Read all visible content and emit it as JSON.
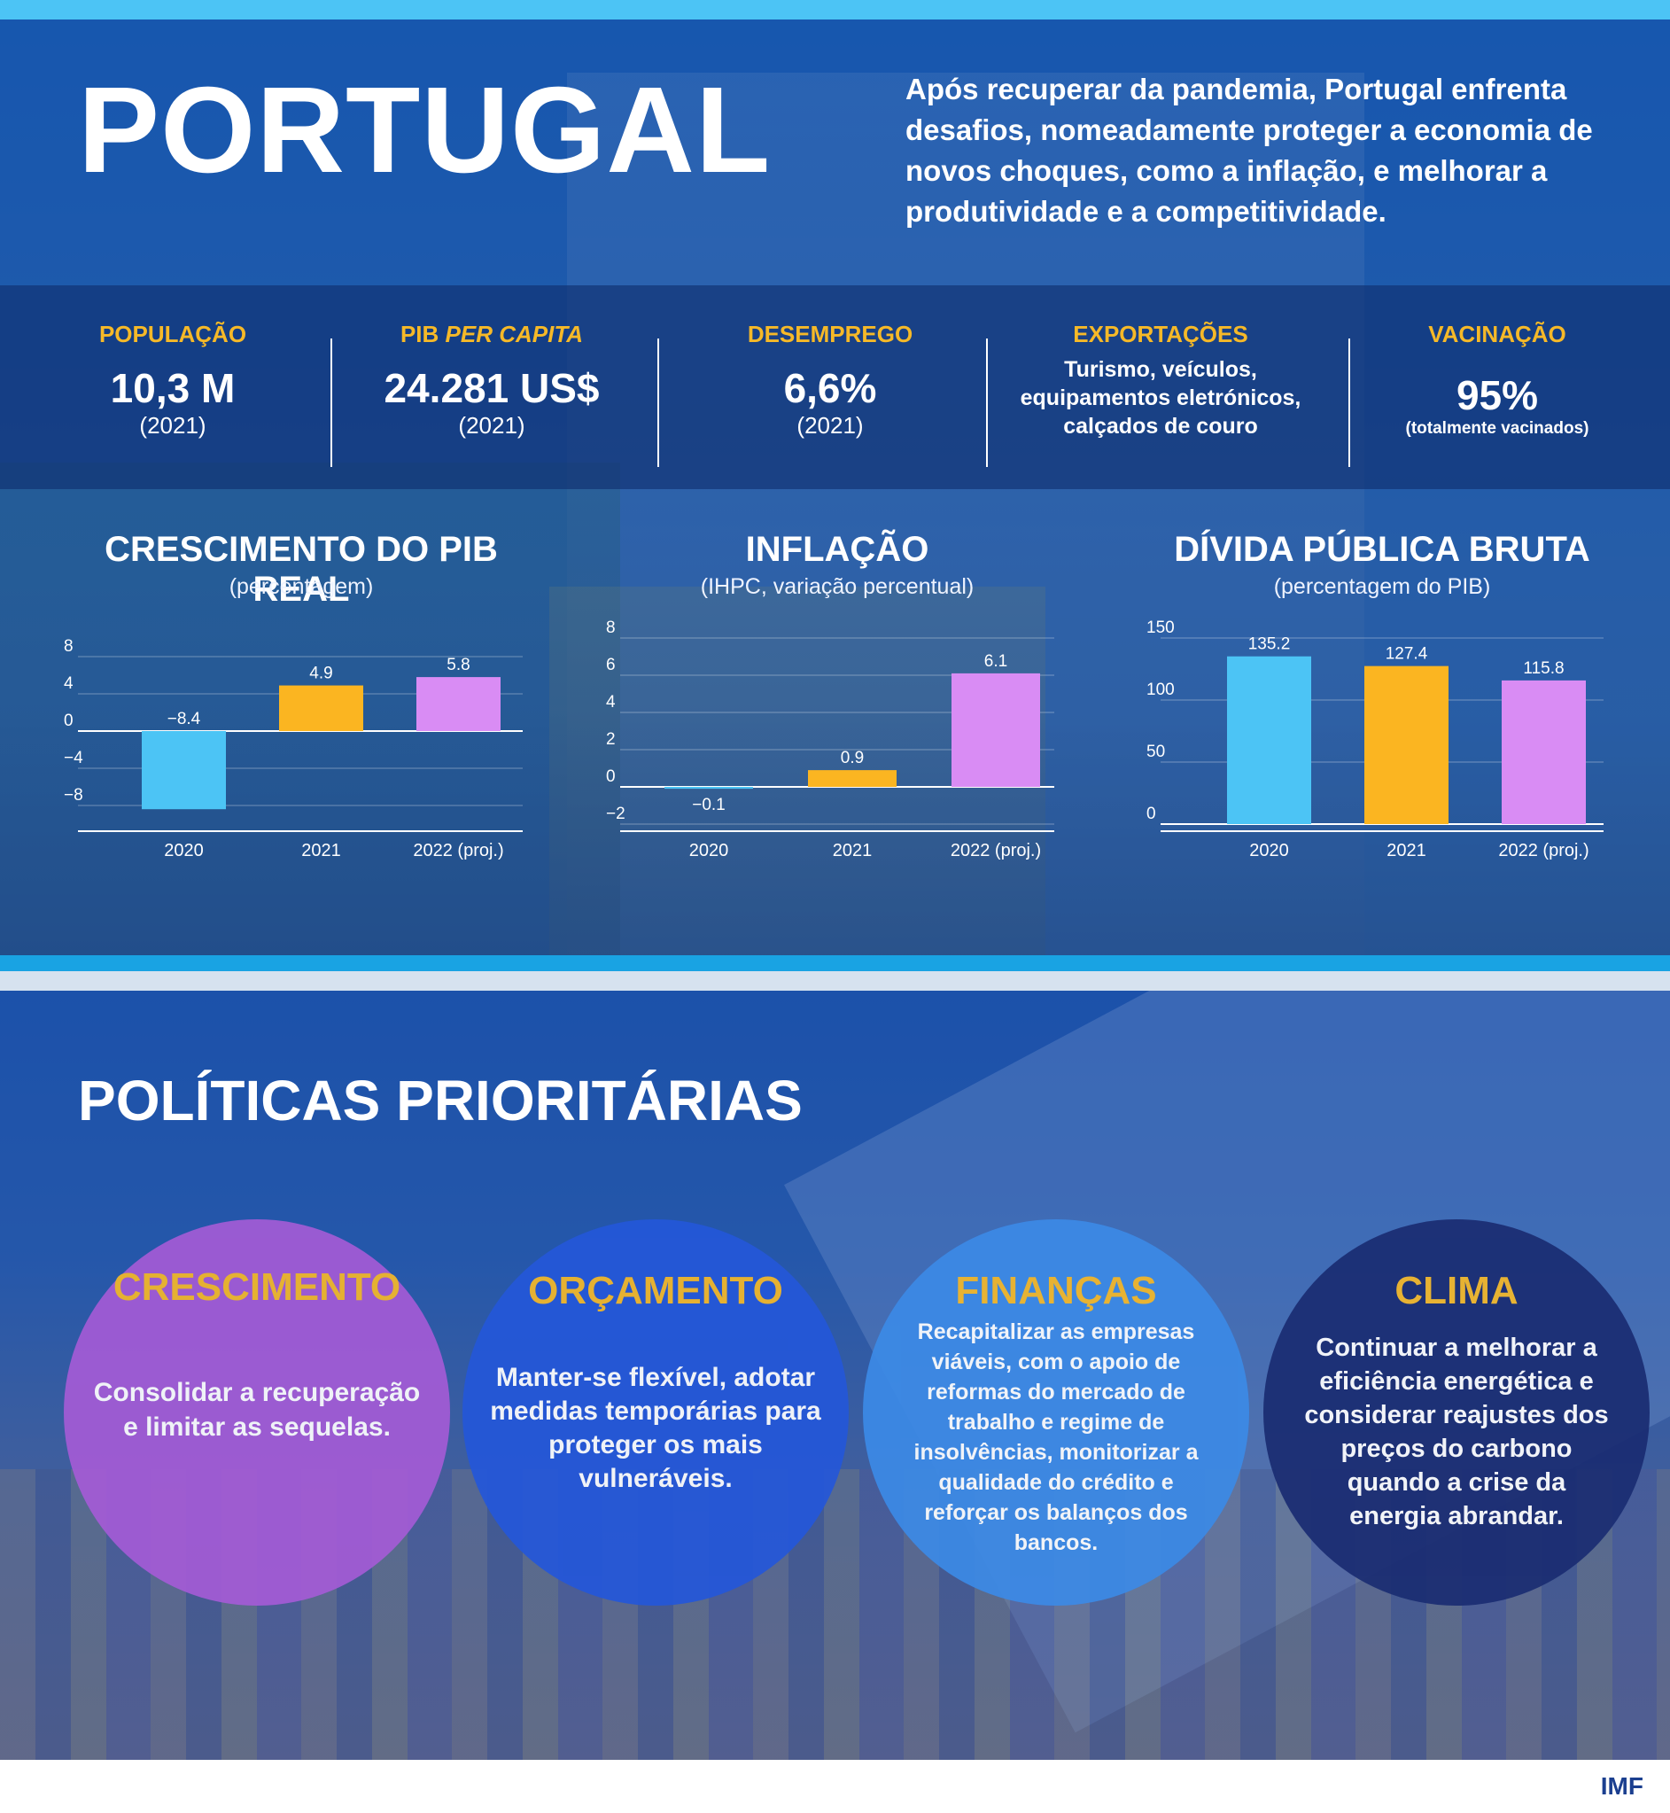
{
  "header": {
    "title": "PORTUGAL",
    "intro": "Após recuperar da pandemia, Portugal enfrenta desafios, nomeadamente proteger a economia de novos choques, como a inflação, e melhorar a produtividade e a competitividade."
  },
  "stats": {
    "population": {
      "label": "POPULAÇÃO",
      "value": "10,3 M",
      "sub": "(2021)"
    },
    "gdp_pc": {
      "label_main": "PIB ",
      "label_em": "PER CAPITA",
      "value": "24.281 US$",
      "sub": "(2021)"
    },
    "unemployment": {
      "label": "DESEMPREGO",
      "value": "6,6%",
      "sub": "(2021)"
    },
    "exports": {
      "label": "EXPORTAÇÕES",
      "text": "Turismo, veículos, equipamentos eletrónicos, calçados de couro"
    },
    "vaccination": {
      "label": "VACINAÇÃO",
      "value": "95%",
      "sub": "(totalmente vacinados)"
    }
  },
  "chart_data": [
    {
      "type": "bar",
      "title": "CRESCIMENTO DO PIB REAL",
      "subtitle": "(percentagem)",
      "categories": [
        "2020",
        "2021",
        "2022 (proj.)"
      ],
      "values": [
        -8.4,
        4.9,
        5.8
      ],
      "value_labels": [
        "−8.4",
        "4.9",
        "5.8"
      ],
      "colors": [
        "#4cc4f5",
        "#fbb521",
        "#d98cf4"
      ],
      "ylim": [
        -10,
        10
      ],
      "yticks": [
        8,
        4,
        0,
        -4,
        -8
      ],
      "ytick_labels": [
        "8",
        "4",
        "0",
        "−4",
        "−8"
      ],
      "grid": true
    },
    {
      "type": "bar",
      "title": "INFLAÇÃO",
      "subtitle": "(IHPC, variação percentual)",
      "categories": [
        "2020",
        "2021",
        "2022 (proj.)"
      ],
      "values": [
        -0.1,
        0.9,
        6.1
      ],
      "value_labels": [
        "−0.1",
        "0.9",
        "6.1"
      ],
      "colors": [
        "#4cc4f5",
        "#fbb521",
        "#d98cf4"
      ],
      "ylim": [
        -2,
        8
      ],
      "yticks": [
        8,
        6,
        4,
        2,
        0,
        -2
      ],
      "ytick_labels": [
        "8",
        "6",
        "4",
        "2",
        "0",
        "−2"
      ],
      "grid": true
    },
    {
      "type": "bar",
      "title": "DÍVIDA PÚBLICA BRUTA",
      "subtitle": "(percentagem do PIB)",
      "categories": [
        "2020",
        "2021",
        "2022 (proj.)"
      ],
      "values": [
        135.2,
        127.4,
        115.8
      ],
      "value_labels": [
        "135.2",
        "127.4",
        "115.8"
      ],
      "colors": [
        "#4cc4f5",
        "#fbb521",
        "#d98cf4"
      ],
      "ylim": [
        0,
        150
      ],
      "yticks": [
        150,
        100,
        50,
        0
      ],
      "ytick_labels": [
        "150",
        "100",
        "50",
        "0"
      ],
      "grid": true
    }
  ],
  "policies": {
    "title": "POLÍTICAS PRIORITÁRIAS",
    "items": [
      {
        "heading": "CRESCIMENTO",
        "text": "Consolidar a recuperação e limitar as sequelas.",
        "color": "#a45bd6"
      },
      {
        "heading": "ORÇAMENTO",
        "text": "Manter-se flexível, adotar medidas temporárias para proteger os mais vulneráveis.",
        "color": "#2457d9"
      },
      {
        "heading": "FINANÇAS",
        "text": "Recapitalizar as empresas viáveis, com o apoio de reformas do mercado de trabalho e regime de insolvências, monitorizar a qualidade do crédito e reforçar os balanços dos bancos.",
        "color": "#3c8ae6"
      },
      {
        "heading": "CLIMA",
        "text": "Continuar a melhorar a eficiência energética e considerar reajustes dos preços do carbono quando a crise da energia abrandar.",
        "color": "#1a2c72"
      }
    ]
  },
  "footer": {
    "brand": "IMF"
  }
}
